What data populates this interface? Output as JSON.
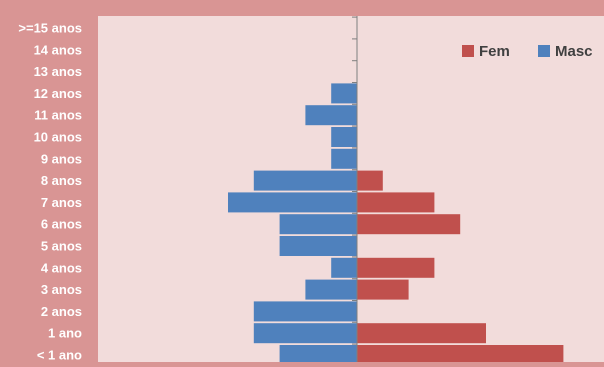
{
  "chart_data": {
    "type": "bar",
    "orientation": "horizontal",
    "title": "",
    "xlabel": "",
    "ylabel": "",
    "categories": [
      ">=15 anos",
      "14 anos",
      "13 anos",
      "12 anos",
      "11 anos",
      "10 anos",
      "9 anos",
      "8 anos",
      "7 anos",
      "6 anos",
      "5 anos",
      "4 anos",
      "3 anos",
      "2 anos",
      "1 ano",
      "< 1 ano"
    ],
    "series": [
      {
        "name": "Fem",
        "color": "#c0504d",
        "values": [
          0,
          0,
          0,
          0,
          0,
          0,
          0,
          1,
          3,
          4,
          0,
          3,
          2,
          0,
          5,
          8
        ]
      },
      {
        "name": "Masc",
        "color": "#4f81bd",
        "values": [
          0,
          0,
          0,
          1,
          2,
          1,
          1,
          4,
          5,
          3,
          3,
          1,
          2,
          4,
          4,
          3
        ]
      }
    ],
    "legend_position": "top-right",
    "grid": false,
    "plot_background": "#f2dcdb",
    "page_background": "#d99594"
  }
}
